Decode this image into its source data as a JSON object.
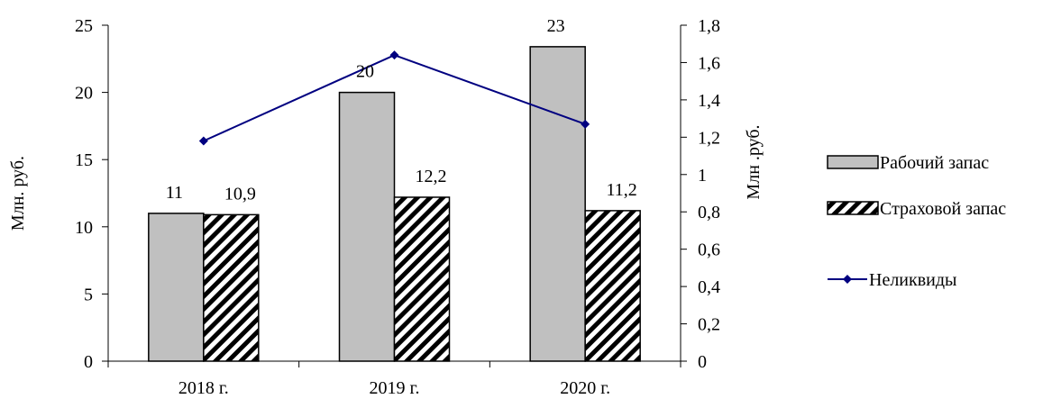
{
  "chart_data": {
    "type": "bar",
    "categories": [
      "2018 г.",
      "2019 г.",
      "2020 г."
    ],
    "series": [
      {
        "name": "Рабочий запас",
        "type": "bar",
        "axis": "left",
        "pattern": "solid",
        "color": "#c0c0c0",
        "values": [
          11,
          20,
          23.4
        ],
        "data_labels": [
          "11",
          "20",
          "23"
        ]
      },
      {
        "name": "Страховой запас",
        "type": "bar",
        "axis": "left",
        "pattern": "diagonal-hatch",
        "color": "#000000",
        "values": [
          10.9,
          12.2,
          11.2
        ],
        "data_labels": [
          "10,9",
          "12,2",
          "11,2"
        ]
      },
      {
        "name": "Неликвиды",
        "type": "line",
        "axis": "right",
        "marker": "diamond",
        "color": "#000080",
        "values": [
          1.18,
          1.64,
          1.27
        ]
      }
    ],
    "ylabel_left": "Млн. руб.",
    "ylabel_right": "Млн .руб.",
    "ylim_left": [
      0,
      25
    ],
    "ylim_right": [
      0,
      1.8
    ],
    "yticks_left": [
      "0",
      "5",
      "10",
      "15",
      "20",
      "25"
    ],
    "yticks_right": [
      "0",
      "0,2",
      "0,4",
      "0,6",
      "0,8",
      "1",
      "1,2",
      "1,4",
      "1,6",
      "1,8"
    ],
    "grid": false,
    "legend_position": "right"
  }
}
